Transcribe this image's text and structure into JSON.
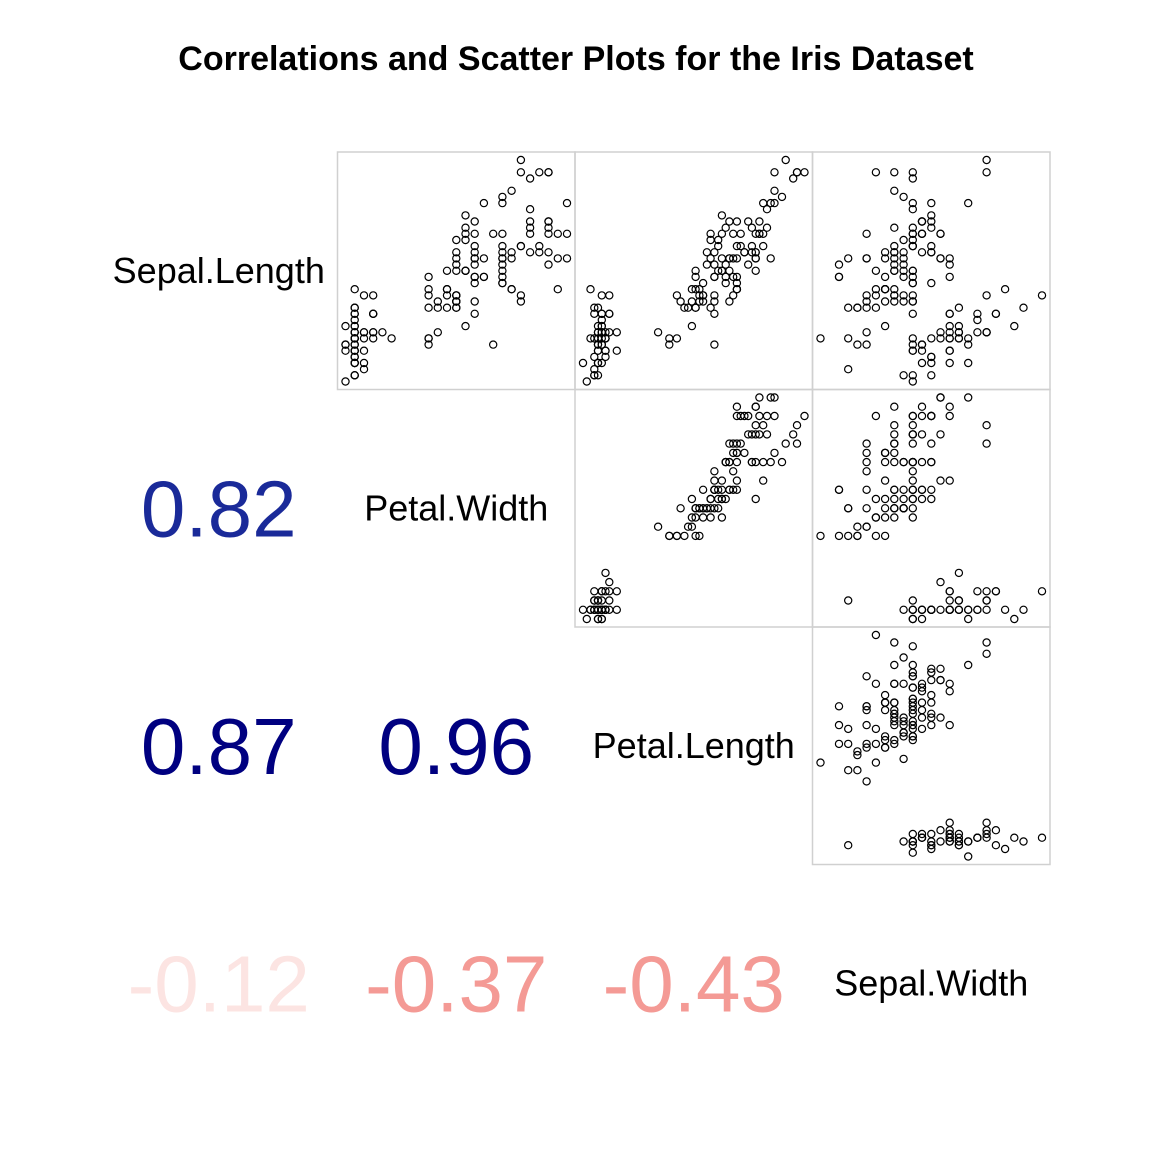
{
  "chart_data": {
    "type": "scatter",
    "title": "Correlations and Scatter Plots for the Iris Dataset",
    "variables": [
      "Sepal.Length",
      "Petal.Width",
      "Petal.Length",
      "Sepal.Width"
    ],
    "point_style": {
      "shape": "open-circle",
      "color": "#000000"
    },
    "panel_border_color": "#d0d0d0",
    "correlations": [
      {
        "row": "Petal.Width",
        "col": "Sepal.Length",
        "value": 0.82,
        "label": "0.82",
        "color": "#1a2a99"
      },
      {
        "row": "Petal.Length",
        "col": "Sepal.Length",
        "value": 0.87,
        "label": "0.87",
        "color": "#000080"
      },
      {
        "row": "Petal.Length",
        "col": "Petal.Width",
        "value": 0.96,
        "label": "0.96",
        "color": "#000080"
      },
      {
        "row": "Sepal.Width",
        "col": "Sepal.Length",
        "value": -0.12,
        "label": "-0.12",
        "color": "#fce4e2"
      },
      {
        "row": "Sepal.Width",
        "col": "Petal.Width",
        "value": -0.37,
        "label": "-0.37",
        "color": "#f49a95"
      },
      {
        "row": "Sepal.Width",
        "col": "Petal.Length",
        "value": -0.43,
        "label": "-0.43",
        "color": "#f49a95"
      }
    ],
    "ranges": {
      "Sepal.Length": [
        4.3,
        7.9
      ],
      "Petal.Width": [
        0.1,
        2.5
      ],
      "Petal.Length": [
        1.0,
        6.9
      ],
      "Sepal.Width": [
        2.0,
        4.4
      ]
    },
    "data": {
      "Sepal.Length": [
        5.1,
        4.9,
        4.7,
        4.6,
        5.0,
        5.4,
        4.6,
        5.0,
        4.4,
        4.9,
        5.4,
        4.8,
        4.8,
        4.3,
        5.8,
        5.7,
        5.4,
        5.1,
        5.7,
        5.1,
        5.4,
        5.1,
        4.6,
        5.1,
        4.8,
        5.0,
        5.0,
        5.2,
        5.2,
        4.7,
        4.8,
        5.4,
        5.2,
        5.5,
        4.9,
        5.0,
        5.5,
        4.9,
        4.4,
        5.1,
        5.0,
        4.5,
        4.4,
        5.0,
        5.1,
        4.8,
        5.1,
        4.6,
        5.3,
        5.0,
        7.0,
        6.4,
        6.9,
        5.5,
        6.5,
        5.7,
        6.3,
        4.9,
        6.6,
        5.2,
        5.0,
        5.9,
        6.0,
        6.1,
        5.6,
        6.7,
        5.6,
        5.8,
        6.2,
        5.6,
        5.9,
        6.1,
        6.3,
        6.1,
        6.4,
        6.6,
        6.8,
        6.7,
        6.0,
        5.7,
        5.5,
        5.5,
        5.8,
        6.0,
        5.4,
        6.0,
        6.7,
        6.3,
        5.6,
        5.5,
        5.5,
        6.1,
        5.8,
        5.0,
        5.6,
        5.7,
        5.7,
        6.2,
        5.1,
        5.7,
        6.3,
        5.8,
        7.1,
        6.3,
        6.5,
        7.6,
        4.9,
        7.3,
        6.7,
        7.2,
        6.5,
        6.4,
        6.8,
        5.7,
        5.8,
        6.4,
        6.5,
        7.7,
        7.7,
        6.0,
        6.9,
        5.6,
        7.7,
        6.3,
        6.7,
        7.2,
        6.2,
        6.1,
        6.4,
        7.2,
        7.4,
        7.9,
        6.4,
        6.3,
        6.1,
        7.7,
        6.3,
        6.4,
        6.0,
        6.9,
        6.7,
        6.9,
        5.8,
        6.8,
        6.7,
        6.7,
        6.3,
        6.5,
        6.2,
        5.9
      ],
      "Sepal.Width": [
        3.5,
        3.0,
        3.2,
        3.1,
        3.6,
        3.9,
        3.4,
        3.4,
        2.9,
        3.1,
        3.7,
        3.4,
        3.0,
        3.0,
        4.0,
        4.4,
        3.9,
        3.5,
        3.8,
        3.8,
        3.4,
        3.7,
        3.6,
        3.3,
        3.4,
        3.0,
        3.4,
        3.5,
        3.4,
        3.2,
        3.1,
        3.4,
        4.1,
        4.2,
        3.1,
        3.2,
        3.5,
        3.6,
        3.0,
        3.4,
        3.5,
        2.3,
        3.2,
        3.5,
        3.8,
        3.0,
        3.8,
        3.2,
        3.7,
        3.3,
        3.2,
        3.2,
        3.1,
        2.3,
        2.8,
        2.8,
        3.3,
        2.4,
        2.9,
        2.7,
        2.0,
        3.0,
        2.2,
        2.9,
        2.9,
        3.1,
        3.0,
        2.7,
        2.2,
        2.5,
        3.2,
        2.8,
        2.5,
        2.8,
        2.9,
        3.0,
        2.8,
        3.0,
        2.9,
        2.6,
        2.4,
        2.4,
        2.7,
        2.7,
        3.0,
        3.4,
        3.1,
        2.3,
        3.0,
        2.5,
        2.6,
        3.0,
        2.6,
        2.3,
        2.7,
        3.0,
        2.9,
        2.9,
        2.5,
        2.8,
        3.3,
        2.7,
        3.0,
        2.9,
        3.0,
        3.0,
        2.5,
        2.9,
        2.5,
        3.6,
        3.2,
        2.7,
        3.0,
        2.5,
        2.8,
        3.2,
        3.0,
        3.8,
        2.6,
        2.2,
        3.2,
        2.8,
        2.8,
        2.7,
        3.3,
        3.2,
        2.8,
        3.0,
        2.8,
        3.0,
        2.8,
        3.8,
        2.8,
        2.8,
        2.6,
        3.0,
        3.4,
        3.1,
        3.0,
        3.1,
        3.1,
        3.1,
        2.7,
        3.2,
        3.3,
        3.0,
        2.5,
        3.0,
        3.4,
        3.0
      ],
      "Petal.Length": [
        1.4,
        1.4,
        1.3,
        1.5,
        1.4,
        1.7,
        1.4,
        1.5,
        1.4,
        1.5,
        1.5,
        1.6,
        1.4,
        1.1,
        1.2,
        1.5,
        1.3,
        1.4,
        1.7,
        1.5,
        1.7,
        1.5,
        1.0,
        1.7,
        1.9,
        1.6,
        1.6,
        1.5,
        1.4,
        1.6,
        1.6,
        1.5,
        1.5,
        1.4,
        1.5,
        1.2,
        1.3,
        1.4,
        1.3,
        1.5,
        1.3,
        1.3,
        1.3,
        1.6,
        1.9,
        1.4,
        1.6,
        1.4,
        1.5,
        1.4,
        4.7,
        4.5,
        4.9,
        4.0,
        4.6,
        4.5,
        4.7,
        3.3,
        4.6,
        3.9,
        3.5,
        4.2,
        4.0,
        4.7,
        3.6,
        4.4,
        4.5,
        4.1,
        4.5,
        3.9,
        4.8,
        4.0,
        4.9,
        4.7,
        4.3,
        4.4,
        4.8,
        5.0,
        4.5,
        3.5,
        3.8,
        3.7,
        3.9,
        5.1,
        4.5,
        4.5,
        4.7,
        4.4,
        4.1,
        4.0,
        4.4,
        4.6,
        4.0,
        3.3,
        4.2,
        4.2,
        4.2,
        4.3,
        3.0,
        4.1,
        6.0,
        5.1,
        5.9,
        5.6,
        5.8,
        6.6,
        4.5,
        6.3,
        5.8,
        6.1,
        5.1,
        5.3,
        5.5,
        5.0,
        5.1,
        5.3,
        5.5,
        6.7,
        6.9,
        5.0,
        5.7,
        4.9,
        6.7,
        4.9,
        5.7,
        6.0,
        4.8,
        4.9,
        5.6,
        5.8,
        6.1,
        6.4,
        5.6,
        5.1,
        5.6,
        6.1,
        5.6,
        5.5,
        4.8,
        5.4,
        5.6,
        5.1,
        5.1,
        5.9,
        5.7,
        5.2,
        5.0,
        5.2,
        5.4,
        5.1
      ],
      "Petal.Width": [
        0.2,
        0.2,
        0.2,
        0.2,
        0.2,
        0.4,
        0.3,
        0.2,
        0.2,
        0.1,
        0.2,
        0.2,
        0.1,
        0.1,
        0.2,
        0.4,
        0.4,
        0.3,
        0.3,
        0.3,
        0.2,
        0.4,
        0.2,
        0.5,
        0.2,
        0.2,
        0.4,
        0.2,
        0.2,
        0.2,
        0.2,
        0.4,
        0.1,
        0.2,
        0.2,
        0.2,
        0.2,
        0.1,
        0.2,
        0.2,
        0.3,
        0.3,
        0.2,
        0.6,
        0.4,
        0.3,
        0.2,
        0.2,
        0.2,
        0.2,
        1.4,
        1.5,
        1.5,
        1.3,
        1.5,
        1.3,
        1.6,
        1.0,
        1.3,
        1.4,
        1.0,
        1.5,
        1.0,
        1.4,
        1.3,
        1.4,
        1.5,
        1.0,
        1.5,
        1.1,
        1.8,
        1.3,
        1.5,
        1.2,
        1.3,
        1.4,
        1.4,
        1.7,
        1.5,
        1.0,
        1.1,
        1.0,
        1.2,
        1.6,
        1.5,
        1.6,
        1.5,
        1.3,
        1.3,
        1.3,
        1.2,
        1.4,
        1.2,
        1.0,
        1.3,
        1.2,
        1.3,
        1.3,
        1.1,
        1.3,
        2.5,
        1.9,
        2.1,
        1.8,
        2.2,
        2.1,
        1.7,
        1.8,
        1.8,
        2.5,
        2.0,
        1.9,
        2.1,
        2.0,
        2.4,
        2.3,
        1.8,
        2.2,
        2.3,
        1.5,
        2.3,
        2.0,
        2.0,
        1.8,
        2.1,
        1.8,
        1.8,
        1.8,
        2.1,
        1.6,
        1.9,
        2.0,
        2.2,
        1.5,
        1.4,
        2.3,
        2.4,
        1.8,
        1.8,
        2.1,
        2.4,
        2.3,
        1.9,
        2.3,
        2.5,
        2.3,
        1.9,
        2.0,
        2.3,
        1.8
      ]
    }
  }
}
